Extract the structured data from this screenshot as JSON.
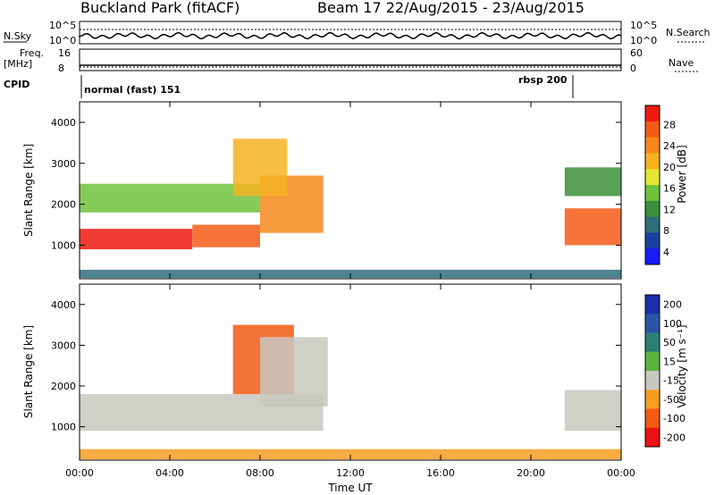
{
  "header": {
    "station": "Buckland Park (fitACF)",
    "beam_range": "Beam 17  22/Aug/2015 - 23/Aug/2015"
  },
  "status_panel": {
    "left_top": "N.Sky",
    "left_top_ticks": [
      "10^5",
      "10^0"
    ],
    "right_top": "N.Search",
    "right_top_ticks": [
      "10^5",
      "10^0"
    ],
    "left_mid_line1": "Freq.",
    "left_mid_line2": "[MHz]",
    "left_mid_ticks": [
      "16",
      "8"
    ],
    "right_mid": "Nave",
    "right_mid_ticks": [
      "60",
      "0"
    ],
    "cpid_label": "CPID",
    "cpid_segments": [
      "normal (fast) 151",
      "rbsp 200"
    ]
  },
  "colors": {
    "power": [
      "#1a1aff",
      "#1a3f9c",
      "#2e6f7a",
      "#3c8f3c",
      "#6fc23c",
      "#e6e633",
      "#f5b322",
      "#f5881c",
      "#f45a17",
      "#f01a0f"
    ],
    "velocity": [
      "#ee1111",
      "#f25b14",
      "#f59d1e",
      "#f5c447",
      "#c8c8c0",
      "#c8c8c0",
      "#5ab43c",
      "#2c7f72",
      "#2a55a6",
      "#1a2fa8"
    ]
  },
  "chart_data": [
    {
      "type": "heatmap",
      "name": "power",
      "ylabel": "Slant Range [km]",
      "ylim": [
        180,
        4500
      ],
      "yticks": [
        "4000",
        "3000",
        "2000",
        "1000"
      ],
      "colorbar_label": "Power [dB]",
      "colorbar_ticks": [
        "28",
        "24",
        "20",
        "16",
        "12",
        "8",
        "4"
      ],
      "colorbar_range": [
        0,
        30
      ],
      "bands": [
        {
          "from_h": 0.0,
          "to_h": 5.0,
          "range_km": [
            900,
            1400
          ],
          "level_db": 27
        },
        {
          "from_h": 5.0,
          "to_h": 8.0,
          "range_km": [
            950,
            1500
          ],
          "level_db": 25
        },
        {
          "from_h": 8.0,
          "to_h": 10.8,
          "range_km": [
            1300,
            2700
          ],
          "level_db": 22
        },
        {
          "from_h": 0.0,
          "to_h": 8.0,
          "range_km": [
            1800,
            2500
          ],
          "level_db": 12
        },
        {
          "from_h": 6.8,
          "to_h": 9.2,
          "range_km": [
            2200,
            3600
          ],
          "level_db": 18
        },
        {
          "from_h": 21.5,
          "to_h": 24.0,
          "range_km": [
            1000,
            1900
          ],
          "level_db": 24
        },
        {
          "from_h": 21.5,
          "to_h": 24.0,
          "range_km": [
            2200,
            2900
          ],
          "level_db": 10
        },
        {
          "from_h": 0.0,
          "to_h": 24.0,
          "range_km": [
            200,
            400
          ],
          "level_db": 8
        }
      ]
    },
    {
      "type": "heatmap",
      "name": "velocity",
      "xlabel": "Time UT",
      "ylabel": "Slant Range [km]",
      "xlim": [
        0,
        24
      ],
      "xticks": [
        "00:00",
        "04:00",
        "08:00",
        "12:00",
        "16:00",
        "20:00",
        "00:00"
      ],
      "ylim": [
        180,
        4500
      ],
      "yticks": [
        "4000",
        "3000",
        "2000",
        "1000"
      ],
      "colorbar_label": "Velocity [m s⁻¹]",
      "colorbar_ticks": [
        "200",
        "100",
        "50",
        "15",
        "-15",
        "-50",
        "-100",
        "-200"
      ],
      "bands": [
        {
          "from_h": 0.0,
          "to_h": 10.8,
          "range_km": [
            900,
            1800
          ],
          "velocity": 0
        },
        {
          "from_h": 6.8,
          "to_h": 9.5,
          "range_km": [
            1800,
            3500
          ],
          "velocity": -60
        },
        {
          "from_h": 8.0,
          "to_h": 11.0,
          "range_km": [
            1500,
            3200
          ],
          "velocity": 0
        },
        {
          "from_h": 21.5,
          "to_h": 24.0,
          "range_km": [
            900,
            1900
          ],
          "velocity": 0
        },
        {
          "from_h": 0.0,
          "to_h": 24.0,
          "range_km": [
            200,
            450
          ],
          "velocity": -40
        }
      ]
    }
  ]
}
